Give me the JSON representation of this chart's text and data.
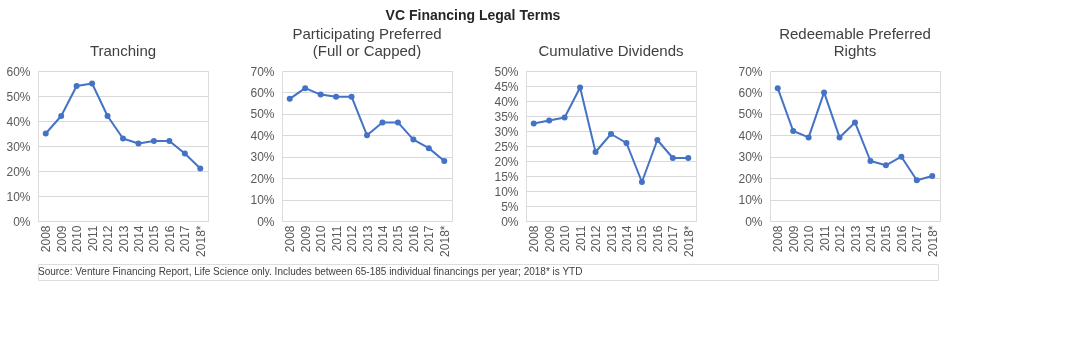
{
  "chart_data": [
    {
      "type": "other",
      "title": "VC Financing Legal Terms",
      "annotations": [
        "Source: Venture Financing Report, Life Science only. Includes between 65-185 individual financings per year; 2018* is YTD"
      ]
    },
    {
      "type": "line",
      "title": "Tranching",
      "categories": [
        "2008",
        "2009",
        "2010",
        "2011",
        "2012",
        "2013",
        "2014",
        "2015",
        "2016",
        "2017",
        "2018*"
      ],
      "series": [
        {
          "color": "#4472c4",
          "values": [
            35,
            42,
            54,
            55,
            42,
            33,
            31,
            32,
            32,
            27,
            21
          ]
        }
      ],
      "ylim": [
        0,
        60
      ],
      "yticks": [
        {
          "value": 0,
          "label": "0%"
        },
        {
          "value": 10,
          "label": "10%"
        },
        {
          "value": 20,
          "label": "20%"
        },
        {
          "value": 30,
          "label": "30%"
        },
        {
          "value": 40,
          "label": "40%"
        },
        {
          "value": 50,
          "label": "50%"
        },
        {
          "value": 60,
          "label": "60%"
        }
      ],
      "grid": "y",
      "marker": "circle"
    },
    {
      "type": "line",
      "title": "Participating Preferred (Full or Capped)",
      "categories": [
        "2008",
        "2009",
        "2010",
        "2011",
        "2012",
        "2013",
        "2014",
        "2015",
        "2016",
        "2017",
        "2018*"
      ],
      "series": [
        {
          "color": "#4472c4",
          "values": [
            57,
            62,
            59,
            58,
            58,
            40,
            46,
            46,
            38,
            34,
            28
          ]
        }
      ],
      "ylim": [
        0,
        70
      ],
      "yticks": [
        {
          "value": 0,
          "label": "0%"
        },
        {
          "value": 10,
          "label": "10%"
        },
        {
          "value": 20,
          "label": "20%"
        },
        {
          "value": 30,
          "label": "30%"
        },
        {
          "value": 40,
          "label": "40%"
        },
        {
          "value": 50,
          "label": "50%"
        },
        {
          "value": 60,
          "label": "60%"
        },
        {
          "value": 70,
          "label": "70%"
        }
      ],
      "grid": "y",
      "marker": "circle"
    },
    {
      "type": "line",
      "title": "Cumulative Dividends",
      "categories": [
        "2008",
        "2009",
        "2010",
        "2011",
        "2012",
        "2013",
        "2014",
        "2015",
        "2016",
        "2017",
        "2018*"
      ],
      "series": [
        {
          "color": "#4472c4",
          "values": [
            32.5,
            33.5,
            34.5,
            44.5,
            23,
            29,
            26,
            13,
            27,
            21,
            21
          ]
        }
      ],
      "ylim": [
        0,
        50
      ],
      "yticks": [
        {
          "value": 0,
          "label": "0%"
        },
        {
          "value": 5,
          "label": "5%"
        },
        {
          "value": 10,
          "label": "10%"
        },
        {
          "value": 15,
          "label": "15%"
        },
        {
          "value": 20,
          "label": "20%"
        },
        {
          "value": 25,
          "label": "25%"
        },
        {
          "value": 30,
          "label": "30%"
        },
        {
          "value": 35,
          "label": "35%"
        },
        {
          "value": 40,
          "label": "40%"
        },
        {
          "value": 45,
          "label": "45%"
        },
        {
          "value": 50,
          "label": "50%"
        }
      ],
      "grid": "y",
      "marker": "circle"
    },
    {
      "type": "line",
      "title": "Redeemable Preferred Rights",
      "categories": [
        "2008",
        "2009",
        "2010",
        "2011",
        "2012",
        "2013",
        "2014",
        "2015",
        "2016",
        "2017",
        "2018*"
      ],
      "series": [
        {
          "color": "#4472c4",
          "values": [
            62,
            42,
            39,
            60,
            39,
            46,
            28,
            26,
            30,
            19,
            21
          ]
        }
      ],
      "ylim": [
        0,
        70
      ],
      "yticks": [
        {
          "value": 0,
          "label": "0%"
        },
        {
          "value": 10,
          "label": "10%"
        },
        {
          "value": 20,
          "label": "20%"
        },
        {
          "value": 30,
          "label": "30%"
        },
        {
          "value": 40,
          "label": "40%"
        },
        {
          "value": 50,
          "label": "50%"
        },
        {
          "value": 60,
          "label": "60%"
        },
        {
          "value": 70,
          "label": "70%"
        }
      ],
      "grid": "y",
      "marker": "circle"
    }
  ]
}
